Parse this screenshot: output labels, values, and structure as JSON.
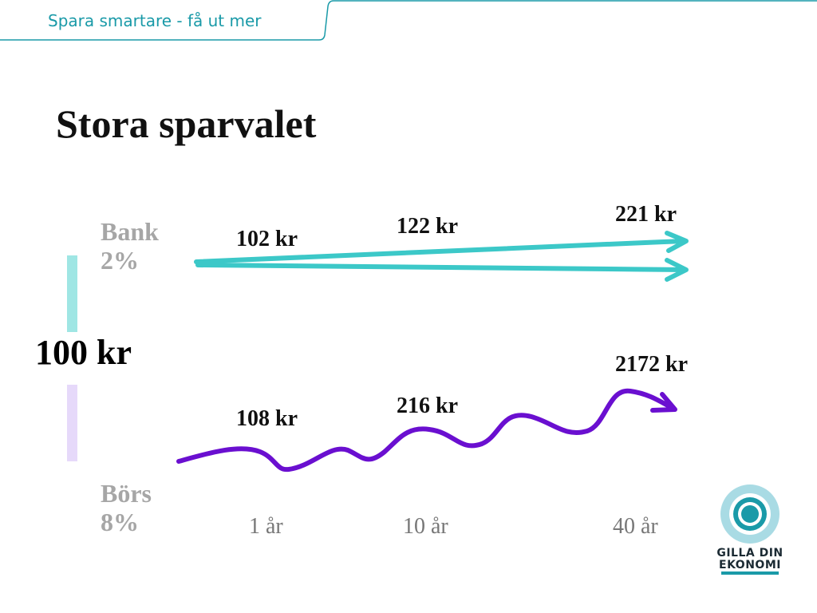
{
  "header": {
    "text": "Spara smartare - få ut mer"
  },
  "title": "Stora sparvalet",
  "start_amount": "100 kr",
  "bank": {
    "label_line1": "Bank",
    "label_line2": "2%",
    "values": [
      "102 kr",
      "122 kr",
      "221 kr"
    ],
    "color": "#3cc8c8",
    "bar_color": "#9fe6e4"
  },
  "bors": {
    "label_line1": "Börs",
    "label_line2": "8%",
    "values": [
      "108 kr",
      "216 kr",
      "2172 kr"
    ],
    "color": "#6a0fd0",
    "bar_color": "#e6d9fa"
  },
  "time_labels": [
    "1 år",
    "10 år",
    "40 år"
  ],
  "logo": {
    "line1": "GILLA DIN",
    "line2": "EKONOMI",
    "icon": "target-circle-icon"
  },
  "accent_color": "#1a9aa8"
}
